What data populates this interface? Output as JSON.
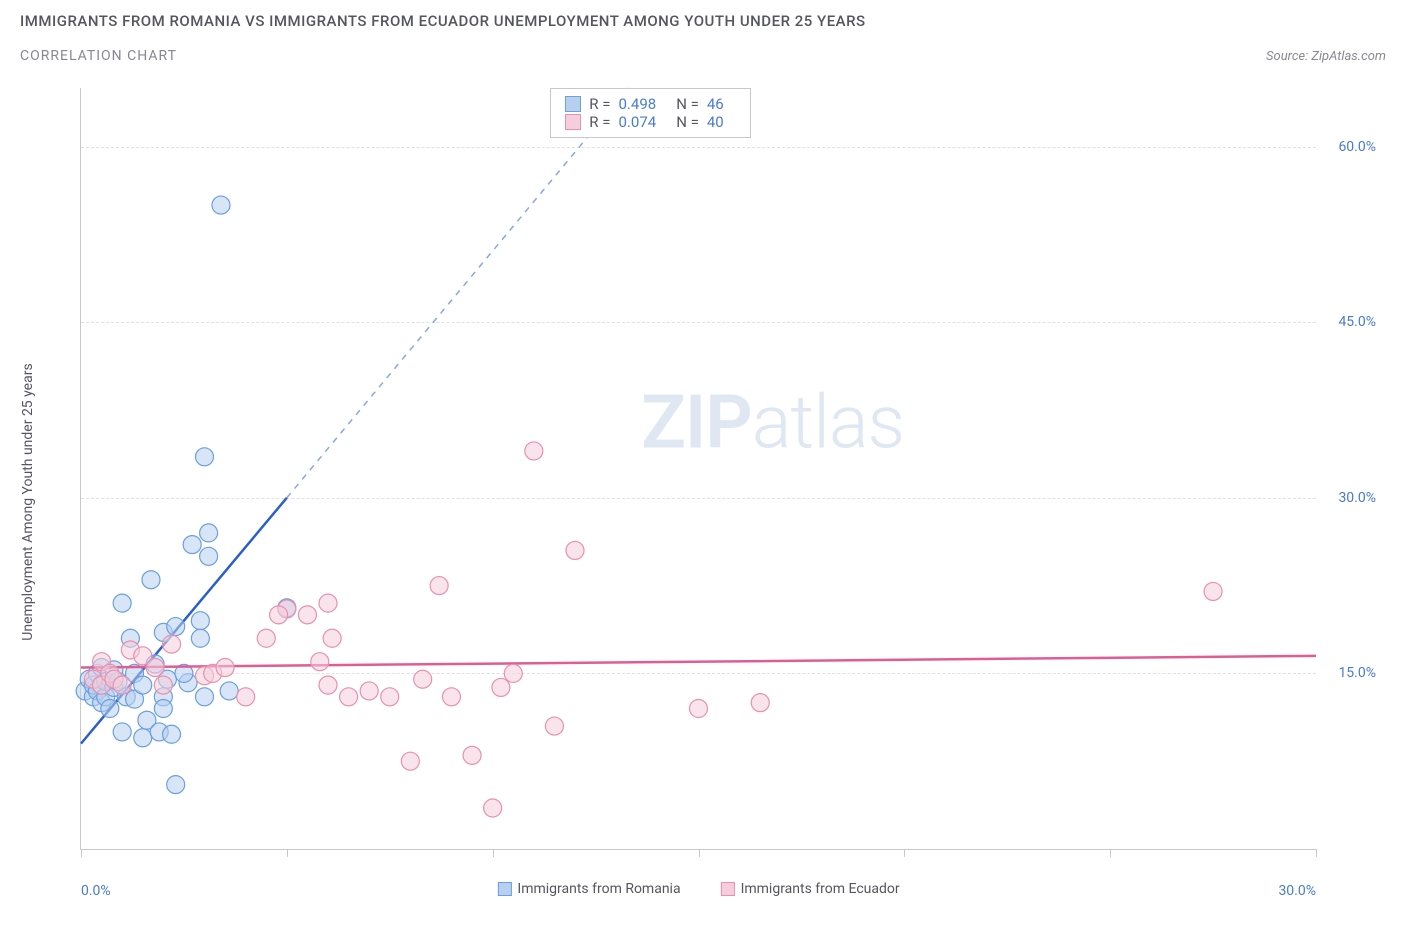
{
  "header": {
    "title": "IMMIGRANTS FROM ROMANIA VS IMMIGRANTS FROM ECUADOR UNEMPLOYMENT AMONG YOUTH UNDER 25 YEARS",
    "subtitle": "CORRELATION CHART",
    "source": "Source: ZipAtlas.com"
  },
  "chart": {
    "type": "scatter",
    "watermark": "ZIPatlas",
    "y_axis_label": "Unemployment Among Youth under 25 years",
    "xlim": [
      0,
      30
    ],
    "ylim": [
      0,
      65
    ],
    "x_ticks": [
      0,
      30
    ],
    "x_tick_labels": [
      "0.0%",
      "30.0%"
    ],
    "x_minor_ticks": [
      0,
      5,
      10,
      15,
      20,
      25,
      30
    ],
    "y_grid": [
      15,
      30,
      45,
      60
    ],
    "y_tick_labels": [
      "15.0%",
      "30.0%",
      "45.0%",
      "60.0%"
    ],
    "background_color": "#ffffff",
    "grid_color": "#e0e0e4",
    "axis_color": "#c8c8cc",
    "tick_label_color": "#4a7bd0",
    "series": [
      {
        "name": "Immigrants from Romania",
        "color_fill": "#b8d0ef",
        "color_stroke": "#6a9fe0",
        "trend_color": "#2a5fc8",
        "marker_radius": 9,
        "R": "0.498",
        "N": "46",
        "trend_line": {
          "x1": 0,
          "y1": 9,
          "x2": 5,
          "y2": 30
        },
        "trend_dash": {
          "x1": 5,
          "y1": 30,
          "x2": 13.3,
          "y2": 65
        },
        "points": [
          [
            0.1,
            13.5
          ],
          [
            0.2,
            14.5
          ],
          [
            0.3,
            13.0
          ],
          [
            0.3,
            14.0
          ],
          [
            0.4,
            13.5
          ],
          [
            0.4,
            15.0
          ],
          [
            0.5,
            12.5
          ],
          [
            0.5,
            14.0
          ],
          [
            0.5,
            15.5
          ],
          [
            0.6,
            13.0
          ],
          [
            0.6,
            14.3
          ],
          [
            0.7,
            12.0
          ],
          [
            0.8,
            13.8
          ],
          [
            0.8,
            15.3
          ],
          [
            0.9,
            14.3
          ],
          [
            1.0,
            10.0
          ],
          [
            1.1,
            13.0
          ],
          [
            1.2,
            18.0
          ],
          [
            1.3,
            12.8
          ],
          [
            1.3,
            15.0
          ],
          [
            1.5,
            9.5
          ],
          [
            1.5,
            14.0
          ],
          [
            1.6,
            11.0
          ],
          [
            1.7,
            23.0
          ],
          [
            1.8,
            15.8
          ],
          [
            1.9,
            10.0
          ],
          [
            2.0,
            13.0
          ],
          [
            2.0,
            18.5
          ],
          [
            2.1,
            14.5
          ],
          [
            2.2,
            9.8
          ],
          [
            2.3,
            19.0
          ],
          [
            2.3,
            5.5
          ],
          [
            2.6,
            14.2
          ],
          [
            2.7,
            26.0
          ],
          [
            2.9,
            19.5
          ],
          [
            2.9,
            18.0
          ],
          [
            3.0,
            13.0
          ],
          [
            3.0,
            33.5
          ],
          [
            3.1,
            27.0
          ],
          [
            3.1,
            25.0
          ],
          [
            3.4,
            55.0
          ],
          [
            3.6,
            13.5
          ],
          [
            5.0,
            20.6
          ],
          [
            1.0,
            21.0
          ],
          [
            2.0,
            12.0
          ],
          [
            2.5,
            15.0
          ]
        ]
      },
      {
        "name": "Immigrants from Ecuador",
        "color_fill": "#f6cddb",
        "color_stroke": "#e890b0",
        "trend_color": "#e05c93",
        "marker_radius": 9,
        "R": "0.074",
        "N": "40",
        "trend_line": {
          "x1": 0,
          "y1": 15.5,
          "x2": 30,
          "y2": 16.5
        },
        "points": [
          [
            0.3,
            14.5
          ],
          [
            0.5,
            14.0
          ],
          [
            0.5,
            16.0
          ],
          [
            0.7,
            15.0
          ],
          [
            0.8,
            14.5
          ],
          [
            1.0,
            14.0
          ],
          [
            1.2,
            17.0
          ],
          [
            1.5,
            16.5
          ],
          [
            1.8,
            15.5
          ],
          [
            2.0,
            14.0
          ],
          [
            2.2,
            17.5
          ],
          [
            3.0,
            14.8
          ],
          [
            3.2,
            15.0
          ],
          [
            3.5,
            15.5
          ],
          [
            4.0,
            13.0
          ],
          [
            4.5,
            18.0
          ],
          [
            5.0,
            20.5
          ],
          [
            5.5,
            20.0
          ],
          [
            5.8,
            16.0
          ],
          [
            6.0,
            21.0
          ],
          [
            6.1,
            18.0
          ],
          [
            6.5,
            13.0
          ],
          [
            7.0,
            13.5
          ],
          [
            7.5,
            13.0
          ],
          [
            8.0,
            7.5
          ],
          [
            8.3,
            14.5
          ],
          [
            8.7,
            22.5
          ],
          [
            9.0,
            13.0
          ],
          [
            9.5,
            8.0
          ],
          [
            10.0,
            3.5
          ],
          [
            10.2,
            13.8
          ],
          [
            10.5,
            15.0
          ],
          [
            11.0,
            34.0
          ],
          [
            11.5,
            10.5
          ],
          [
            12.0,
            25.5
          ],
          [
            15.0,
            12.0
          ],
          [
            16.5,
            12.5
          ],
          [
            27.5,
            22.0
          ],
          [
            4.8,
            20.0
          ],
          [
            6.0,
            14.0
          ]
        ]
      }
    ],
    "legend": {
      "items": [
        {
          "label": "Immigrants from Romania",
          "fill": "#b8d0ef",
          "stroke": "#6a9fe0"
        },
        {
          "label": "Immigrants from Ecuador",
          "fill": "#f6cddb",
          "stroke": "#e890b0"
        }
      ]
    }
  }
}
